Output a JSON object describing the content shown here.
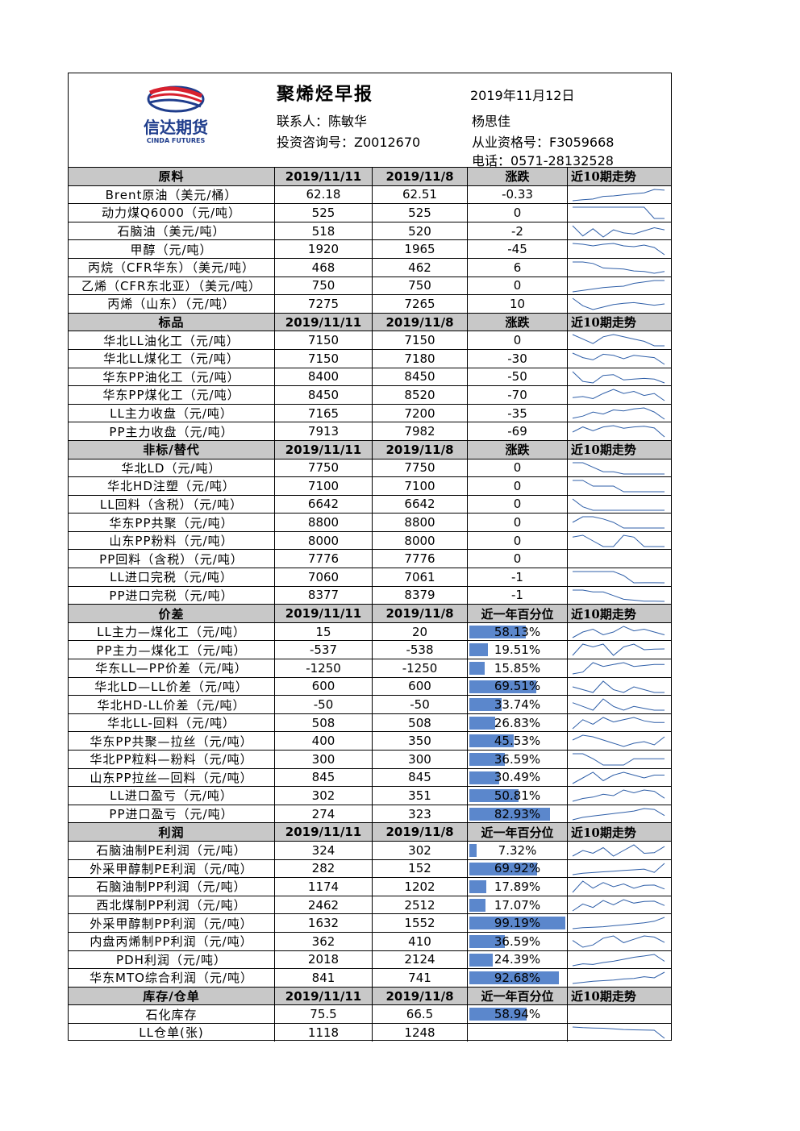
{
  "header": {
    "title": "聚烯烃早报",
    "date": "2019年11月12日",
    "contact": "联系人：陈敏华",
    "invest_no": "投资咨询号：Z0012670",
    "analyst": "杨思佳",
    "license": "从业资格号：F3059668",
    "phone": "电话：0571-28132528",
    "logo_text": "信达期货",
    "logo_sub": "CINDA FUTURES",
    "brand_colors": {
      "red": "#d8202e",
      "blue": "#1f3d8c"
    }
  },
  "colors": {
    "section_bg": "#c8c8c8",
    "bar": "#5b87cc",
    "spark": "#2f5fa8"
  },
  "sections": [
    {
      "header": [
        "原料",
        "2019/11/11",
        "2019/11/8",
        "涨跌",
        "近10期走势"
      ],
      "type": "change",
      "rows": [
        {
          "name": "Brent原油（美元/桶）",
          "v1": "62.18",
          "v2": "62.51",
          "v3": "-0.33",
          "trend": [
            57.8,
            58.2,
            58.5,
            59.6,
            59.8,
            60.3,
            60.7,
            61.1,
            62.5,
            62.2
          ]
        },
        {
          "name": "动力煤Q6000（元/吨）",
          "v1": "525",
          "v2": "525",
          "v3": "0",
          "trend": [
            560,
            560,
            560,
            560,
            560,
            560,
            560,
            560,
            525,
            525
          ]
        },
        {
          "name": "石脑油（美元/吨）",
          "v1": "518",
          "v2": "520",
          "v3": "-2",
          "trend": [
            522,
            512,
            519,
            511,
            518,
            515,
            514,
            517,
            520,
            518
          ]
        },
        {
          "name": "甲醇（元/吨）",
          "v1": "1920",
          "v2": "1965",
          "v3": "-45",
          "trend": [
            1990,
            1985,
            1975,
            1985,
            1990,
            1975,
            1970,
            1980,
            1965,
            1920
          ]
        },
        {
          "name": "丙烷（CFR华东）（美元/吨）",
          "v1": "468",
          "v2": "462",
          "v3": "6",
          "trend": [
            500,
            500,
            495,
            480,
            478,
            476,
            470,
            468,
            462,
            468
          ]
        },
        {
          "name": "乙烯（CFR东北亚）（美元/吨）",
          "v1": "750",
          "v2": "750",
          "v3": "0",
          "trend": [
            710,
            715,
            720,
            725,
            728,
            730,
            740,
            745,
            750,
            750
          ]
        },
        {
          "name": "丙烯（山东）（元/吨）",
          "v1": "7275",
          "v2": "7265",
          "v3": "10",
          "trend": [
            7320,
            7260,
            7230,
            7250,
            7270,
            7280,
            7285,
            7275,
            7265,
            7275
          ]
        }
      ]
    },
    {
      "header": [
        "标品",
        "2019/11/11",
        "2019/11/8",
        "涨跌",
        "近10期走势"
      ],
      "type": "change",
      "rows": [
        {
          "name": "华北LL油化工（元/吨）",
          "v1": "7150",
          "v2": "7150",
          "v3": "0",
          "trend": [
            7200,
            7180,
            7160,
            7190,
            7200,
            7190,
            7180,
            7170,
            7150,
            7150
          ]
        },
        {
          "name": "华北LL煤化工（元/吨）",
          "v1": "7150",
          "v2": "7180",
          "v3": "-30",
          "trend": [
            7200,
            7180,
            7170,
            7195,
            7190,
            7175,
            7190,
            7185,
            7180,
            7150
          ]
        },
        {
          "name": "华东PP油化工（元/吨）",
          "v1": "8400",
          "v2": "8450",
          "v3": "-50",
          "trend": [
            8550,
            8420,
            8400,
            8500,
            8510,
            8440,
            8450,
            8460,
            8450,
            8400
          ]
        },
        {
          "name": "华东PP煤化工（元/吨）",
          "v1": "8450",
          "v2": "8520",
          "v3": "-70",
          "trend": [
            8480,
            8490,
            8470,
            8520,
            8560,
            8520,
            8540,
            8500,
            8520,
            8450
          ]
        },
        {
          "name": "LL主力收盘（元/吨）",
          "v1": "7165",
          "v2": "7200",
          "v3": "-35",
          "trend": [
            7170,
            7180,
            7200,
            7190,
            7210,
            7205,
            7215,
            7220,
            7200,
            7165
          ]
        },
        {
          "name": "PP主力收盘（元/吨）",
          "v1": "7913",
          "v2": "7982",
          "v3": "-69",
          "trend": [
            7950,
            7990,
            7960,
            7990,
            8000,
            7980,
            7990,
            7995,
            7982,
            7913
          ]
        }
      ]
    },
    {
      "header": [
        "非标/替代",
        "2019/11/11",
        "2019/11/8",
        "涨跌",
        "近10期走势"
      ],
      "type": "change",
      "rows": [
        {
          "name": "华北LD（元/吨）",
          "v1": "7750",
          "v2": "7750",
          "v3": "0",
          "trend": [
            7800,
            7800,
            7780,
            7760,
            7760,
            7750,
            7750,
            7750,
            7750,
            7750
          ]
        },
        {
          "name": "华北HD注塑（元/吨）",
          "v1": "7100",
          "v2": "7100",
          "v3": "0",
          "trend": [
            7200,
            7200,
            7150,
            7150,
            7150,
            7100,
            7100,
            7100,
            7100,
            7100
          ]
        },
        {
          "name": "LL回料（含税）（元/吨）",
          "v1": "6642",
          "v2": "6642",
          "v3": "0",
          "trend": [
            6700,
            6660,
            6642,
            6642,
            6642,
            6642,
            6642,
            6642,
            6642,
            6642
          ]
        },
        {
          "name": "华东PP共聚（元/吨）",
          "v1": "8800",
          "v2": "8800",
          "v3": "0",
          "trend": [
            8850,
            8900,
            8900,
            8880,
            8850,
            8800,
            8800,
            8800,
            8800,
            8800
          ]
        },
        {
          "name": "山东PP粉料（元/吨）",
          "v1": "8000",
          "v2": "8000",
          "v3": "0",
          "trend": [
            8050,
            8060,
            8030,
            8000,
            8000,
            8060,
            8050,
            8000,
            8000,
            8000
          ]
        },
        {
          "name": "PP回料（含税）（元/吨）",
          "v1": "7776",
          "v2": "7776",
          "v3": "0",
          "trend": []
        },
        {
          "name": "LL进口完税（元/吨）",
          "v1": "7060",
          "v2": "7061",
          "v3": "-1",
          "trend": [
            7200,
            7200,
            7200,
            7200,
            7200,
            7150,
            7060,
            7061,
            7061,
            7060
          ]
        },
        {
          "name": "PP进口完税（元/吨）",
          "v1": "8377",
          "v2": "8379",
          "v3": "-1",
          "trend": [
            8500,
            8500,
            8480,
            8480,
            8440,
            8400,
            8390,
            8380,
            8379,
            8377
          ]
        }
      ]
    },
    {
      "header": [
        "价差",
        "2019/11/11",
        "2019/11/8",
        "近一年百分位",
        "近10期走势"
      ],
      "type": "percentile",
      "rows": [
        {
          "name": "LL主力—煤化工（元/吨）",
          "v1": "15",
          "v2": "20",
          "pct": "58.13%",
          "pct_value": 58.13,
          "trend": [
            10,
            20,
            25,
            15,
            20,
            30,
            22,
            25,
            20,
            15
          ]
        },
        {
          "name": "PP主力—煤化工（元/吨）",
          "v1": "-537",
          "v2": "-538",
          "pct": "19.51%",
          "pct_value": 19.51,
          "trend": [
            -560,
            -520,
            -530,
            -520,
            -560,
            -530,
            -520,
            -540,
            -538,
            -537
          ]
        },
        {
          "name": "华东LL—PP价差（元/吨）",
          "v1": "-1250",
          "v2": "-1250",
          "pct": "15.85%",
          "pct_value": 15.85,
          "trend": [
            -1300,
            -1290,
            -1240,
            -1260,
            -1250,
            -1240,
            -1260,
            -1255,
            -1250,
            -1250
          ]
        },
        {
          "name": "华北LD—LL价差（元/吨）",
          "v1": "600",
          "v2": "600",
          "pct": "69.51%",
          "pct_value": 69.51,
          "trend": [
            620,
            610,
            600,
            640,
            610,
            600,
            620,
            610,
            600,
            600
          ]
        },
        {
          "name": "华北HD-LL价差（元/吨）",
          "v1": "-50",
          "v2": "-50",
          "pct": "33.74%",
          "pct_value": 33.74,
          "trend": [
            -30,
            -40,
            -50,
            -20,
            -40,
            -50,
            -40,
            -45,
            -50,
            -50
          ]
        },
        {
          "name": "华北LL-回料（元/吨）",
          "v1": "508",
          "v2": "508",
          "pct": "26.83%",
          "pct_value": 26.83,
          "trend": [
            480,
            520,
            500,
            530,
            510,
            520,
            530,
            515,
            508,
            508
          ]
        },
        {
          "name": "华东PP共聚—拉丝（元/吨）",
          "v1": "400",
          "v2": "350",
          "pct": "45.53%",
          "pct_value": 45.53,
          "trend": [
            380,
            410,
            400,
            380,
            360,
            340,
            360,
            370,
            350,
            400
          ]
        },
        {
          "name": "华北PP粒料—粉料（元/吨）",
          "v1": "300",
          "v2": "300",
          "pct": "36.59%",
          "pct_value": 36.59,
          "trend": [
            340,
            340,
            300,
            250,
            250,
            250,
            300,
            300,
            300,
            300
          ]
        },
        {
          "name": "山东PP拉丝—回料（元/吨）",
          "v1": "845",
          "v2": "845",
          "pct": "30.49%",
          "pct_value": 30.49,
          "trend": [
            830,
            840,
            850,
            835,
            845,
            850,
            845,
            840,
            845,
            845
          ]
        },
        {
          "name": "LL进口盈亏（元/吨）",
          "v1": "302",
          "v2": "351",
          "pct": "50.81%",
          "pct_value": 50.81,
          "trend": [
            280,
            300,
            310,
            330,
            320,
            360,
            340,
            360,
            351,
            302
          ]
        },
        {
          "name": "PP进口盈亏（元/吨）",
          "v1": "274",
          "v2": "323",
          "pct": "82.93%",
          "pct_value": 82.93,
          "trend": [
            240,
            260,
            270,
            280,
            290,
            300,
            310,
            330,
            323,
            274
          ]
        }
      ]
    },
    {
      "header": [
        "利润",
        "2019/11/11",
        "2019/11/8",
        "近一年百分位",
        "近10期走势"
      ],
      "type": "percentile",
      "rows": [
        {
          "name": "石脑油制PE利润（元/吨）",
          "v1": "324",
          "v2": "302",
          "pct": "7.32%",
          "pct_value": 7.32,
          "trend": [
            290,
            310,
            300,
            320,
            290,
            310,
            330,
            300,
            302,
            324
          ]
        },
        {
          "name": "外采甲醇制PE利润（元/吨）",
          "v1": "282",
          "v2": "152",
          "pct": "69.92%",
          "pct_value": 69.92,
          "trend": [
            120,
            140,
            150,
            160,
            170,
            180,
            190,
            200,
            152,
            282
          ]
        },
        {
          "name": "石脑油制PP利润（元/吨）",
          "v1": "1174",
          "v2": "1202",
          "pct": "17.89%",
          "pct_value": 17.89,
          "trend": [
            1150,
            1230,
            1180,
            1220,
            1190,
            1210,
            1180,
            1200,
            1202,
            1174
          ]
        },
        {
          "name": "西北煤制PP利润（元/吨）",
          "v1": "2462",
          "v2": "2512",
          "pct": "17.07%",
          "pct_value": 17.07,
          "trend": [
            2400,
            2480,
            2440,
            2520,
            2470,
            2530,
            2490,
            2510,
            2512,
            2462
          ]
        },
        {
          "name": "外采甲醇制PP利润（元/吨）",
          "v1": "1632",
          "v2": "1552",
          "pct": "99.19%",
          "pct_value": 99.19,
          "trend": [
            1400,
            1420,
            1430,
            1440,
            1460,
            1480,
            1500,
            1520,
            1552,
            1632
          ]
        },
        {
          "name": "内盘丙烯制PP利润（元/吨）",
          "v1": "362",
          "v2": "410",
          "pct": "36.59%",
          "pct_value": 36.59,
          "trend": [
            380,
            320,
            340,
            400,
            420,
            360,
            390,
            420,
            410,
            362
          ]
        },
        {
          "name": "PDH利润（元/吨）",
          "v1": "2018",
          "v2": "2124",
          "pct": "24.39%",
          "pct_value": 24.39,
          "trend": [
            1950,
            1980,
            1970,
            2000,
            2020,
            2050,
            2080,
            2100,
            2124,
            2018
          ]
        },
        {
          "name": "华东MTO综合利润（元/吨）",
          "v1": "841",
          "v2": "741",
          "pct": "92.68%",
          "pct_value": 92.68,
          "trend": [
            640,
            660,
            680,
            690,
            700,
            720,
            730,
            760,
            741,
            841
          ]
        }
      ]
    },
    {
      "header": [
        "库存/仓单",
        "2019/11/11",
        "2019/11/8",
        "近一年百分位",
        "近10期走势"
      ],
      "type": "percentile",
      "rows": [
        {
          "name": "石化库存",
          "v1": "75.5",
          "v2": "66.5",
          "pct": "58.94%",
          "pct_value": 58.94,
          "trend": []
        },
        {
          "name": "LL仓单(张)",
          "v1": "1118",
          "v2": "1248",
          "pct": "",
          "pct_value": null,
          "trend": [
            1300,
            1290,
            1285,
            1280,
            1270,
            1260,
            1255,
            1250,
            1248,
            1118
          ]
        }
      ]
    }
  ]
}
